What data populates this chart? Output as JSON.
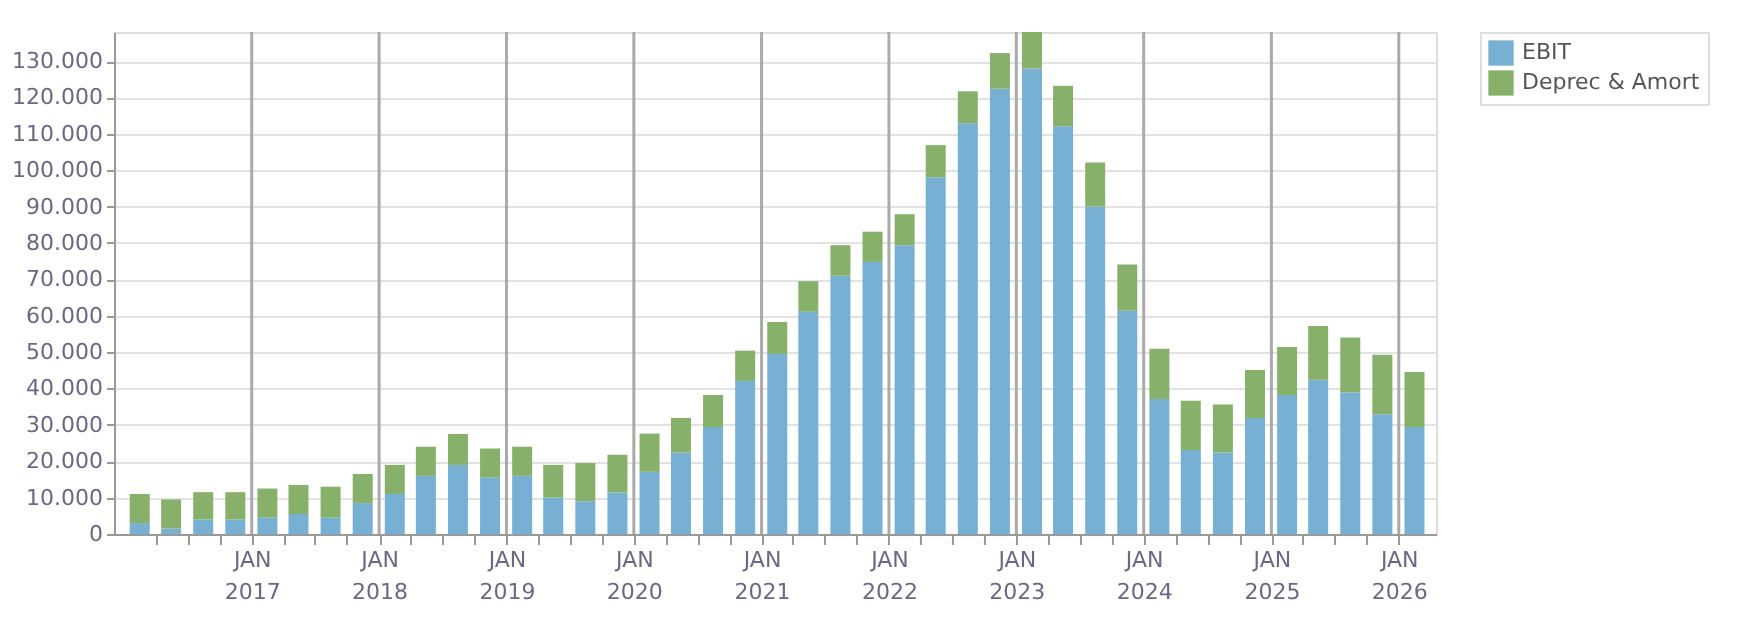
{
  "chart_data": {
    "type": "bar",
    "stacked": true,
    "x": [
      "2016-02-15",
      "2016-05-15",
      "2016-08-15",
      "2016-11-15",
      "2017-02-15",
      "2017-05-15",
      "2017-08-15",
      "2017-11-15",
      "2018-02-15",
      "2018-05-15",
      "2018-08-15",
      "2018-11-15",
      "2019-02-15",
      "2019-05-15",
      "2019-08-15",
      "2019-11-15",
      "2020-02-15",
      "2020-05-15",
      "2020-08-15",
      "2020-11-15",
      "2021-02-15",
      "2021-05-15",
      "2021-08-15",
      "2021-11-15",
      "2022-02-15",
      "2022-05-15",
      "2022-08-15",
      "2022-11-15",
      "2023-02-15",
      "2023-05-15",
      "2023-08-15",
      "2023-11-15",
      "2024-02-15",
      "2024-05-15",
      "2024-08-15",
      "2024-11-15",
      "2025-02-15",
      "2025-05-15",
      "2025-08-15",
      "2025-11-15",
      "2026-02-15"
    ],
    "series": [
      {
        "name": "EBIT",
        "color": "#77b0d2",
        "values": [
          3000,
          1500,
          4000,
          4000,
          4500,
          5500,
          4500,
          8500,
          11000,
          16000,
          19000,
          15500,
          16000,
          10000,
          9000,
          11400,
          17100,
          22400,
          29400,
          42100,
          49500,
          61100,
          71000,
          74800,
          79400,
          98100,
          112900,
          122400,
          128000,
          112100,
          90000,
          61400,
          37100,
          23100,
          22400,
          31900,
          38200,
          42400,
          38900,
          32900,
          29400
        ]
      },
      {
        "name": "Deprec & Amort",
        "color": "#87b06a",
        "values": [
          8000,
          8000,
          7500,
          7500,
          8000,
          8000,
          8500,
          8000,
          8000,
          8000,
          8500,
          8000,
          8000,
          9000,
          10500,
          10400,
          10500,
          9500,
          8800,
          8300,
          8800,
          8400,
          8400,
          8300,
          8500,
          8800,
          8800,
          9800,
          10000,
          11100,
          12100,
          12700,
          13800,
          13500,
          13200,
          13200,
          13200,
          14800,
          15100,
          16400,
          15100
        ]
      }
    ],
    "xlim": [
      "2016-01-01",
      "2026-03-20"
    ],
    "xticks": [
      {
        "value": "2016-04-01",
        "label": null
      },
      {
        "value": "2016-07-01",
        "label": null
      },
      {
        "value": "2016-10-01",
        "label": null
      },
      {
        "value": "2017-01-01",
        "label": "JAN 2017"
      },
      {
        "value": "2017-04-01",
        "label": null
      },
      {
        "value": "2017-07-01",
        "label": null
      },
      {
        "value": "2017-10-01",
        "label": null
      },
      {
        "value": "2018-01-01",
        "label": "JAN 2018"
      },
      {
        "value": "2018-04-01",
        "label": null
      },
      {
        "value": "2018-07-01",
        "label": null
      },
      {
        "value": "2018-10-01",
        "label": null
      },
      {
        "value": "2019-01-01",
        "label": "JAN 2019"
      },
      {
        "value": "2019-04-01",
        "label": null
      },
      {
        "value": "2019-07-01",
        "label": null
      },
      {
        "value": "2019-10-01",
        "label": null
      },
      {
        "value": "2020-01-01",
        "label": "JAN 2020"
      },
      {
        "value": "2020-04-01",
        "label": null
      },
      {
        "value": "2020-07-01",
        "label": null
      },
      {
        "value": "2020-10-01",
        "label": null
      },
      {
        "value": "2021-01-01",
        "label": "JAN 2021"
      },
      {
        "value": "2021-04-01",
        "label": null
      },
      {
        "value": "2021-07-01",
        "label": null
      },
      {
        "value": "2021-10-01",
        "label": null
      },
      {
        "value": "2022-01-01",
        "label": "JAN 2022"
      },
      {
        "value": "2022-04-01",
        "label": null
      },
      {
        "value": "2022-07-01",
        "label": null
      },
      {
        "value": "2022-10-01",
        "label": null
      },
      {
        "value": "2023-01-01",
        "label": "JAN 2023"
      },
      {
        "value": "2023-04-01",
        "label": null
      },
      {
        "value": "2023-07-01",
        "label": null
      },
      {
        "value": "2023-10-01",
        "label": null
      },
      {
        "value": "2024-01-01",
        "label": "JAN 2024"
      },
      {
        "value": "2024-04-01",
        "label": null
      },
      {
        "value": "2024-07-01",
        "label": null
      },
      {
        "value": "2024-10-01",
        "label": null
      },
      {
        "value": "2025-01-01",
        "label": "JAN 2025"
      },
      {
        "value": "2025-04-01",
        "label": null
      },
      {
        "value": "2025-07-01",
        "label": null
      },
      {
        "value": "2025-10-01",
        "label": null
      },
      {
        "value": "2026-01-01",
        "label": "JAN 2026"
      }
    ],
    "ylim": [
      0,
      138000
    ],
    "yticks": [
      0,
      {
        "value": 10000,
        "label": "10.000"
      },
      {
        "value": 20000,
        "label": "20.000"
      },
      {
        "value": 30000,
        "label": "30.000"
      },
      {
        "value": 40000,
        "label": "40.000"
      },
      {
        "value": 50000,
        "label": "50.000"
      },
      {
        "value": 60000,
        "label": "60.000"
      },
      {
        "value": 70000,
        "label": "70.000"
      },
      {
        "value": 80000,
        "label": "80.000"
      },
      {
        "value": 90000,
        "label": "90.000"
      },
      {
        "value": 100000,
        "label": "100.000"
      },
      {
        "value": 110000,
        "label": "110.000"
      },
      {
        "value": 120000,
        "label": "120.000"
      },
      {
        "value": 130000,
        "label": "130.000"
      }
    ],
    "grid": true,
    "legend": "top right"
  }
}
